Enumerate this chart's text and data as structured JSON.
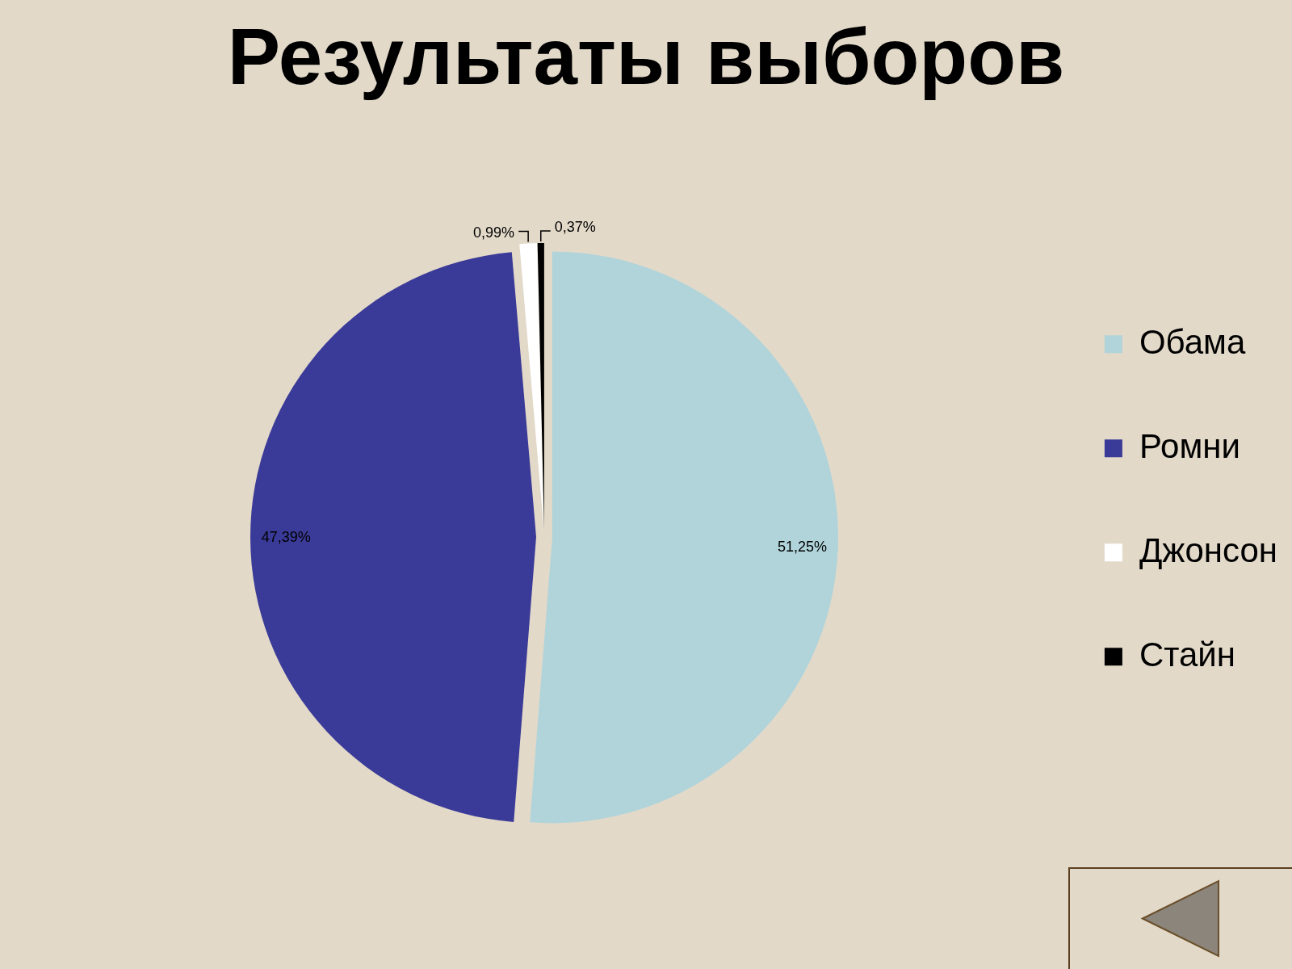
{
  "chart_data": {
    "type": "pie",
    "title": "Результаты выборов",
    "categories": [
      "Обама",
      "Ромни",
      "Джонсон",
      "Стайн"
    ],
    "values": [
      51.25,
      47.39,
      0.99,
      0.37
    ],
    "colors": [
      "#b0d4da",
      "#3a3a98",
      "#ffffff",
      "#000000"
    ],
    "value_labels": [
      "51,25%",
      "47,39%",
      "0,99%",
      "0,37%"
    ],
    "legend": "right"
  }
}
